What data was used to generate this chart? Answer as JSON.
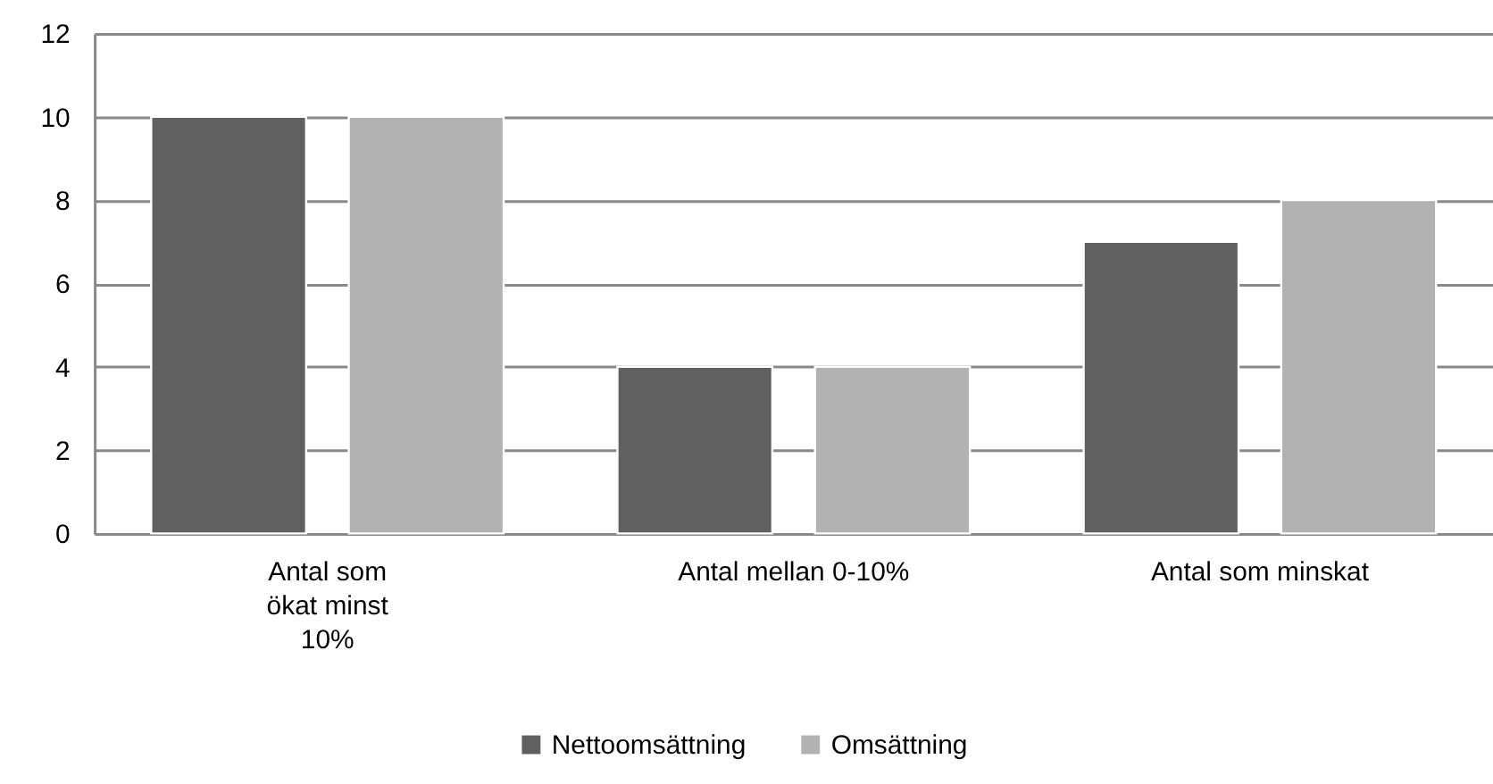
{
  "chart_data": {
    "type": "bar",
    "categories": [
      "Antal som ökat minst 10%",
      "Antal mellan 0-10%",
      "Antal som minskat"
    ],
    "series": [
      {
        "name": "Nettoomsättning",
        "color": "#606060",
        "values": [
          10,
          4,
          7
        ]
      },
      {
        "name": "Omsättning",
        "color": "#b2b2b2",
        "values": [
          10,
          4,
          8
        ]
      }
    ],
    "ylim": [
      0,
      12
    ],
    "yticks": [
      0,
      2,
      4,
      6,
      8,
      10,
      12
    ],
    "grid": "y",
    "legend": "bottom"
  }
}
